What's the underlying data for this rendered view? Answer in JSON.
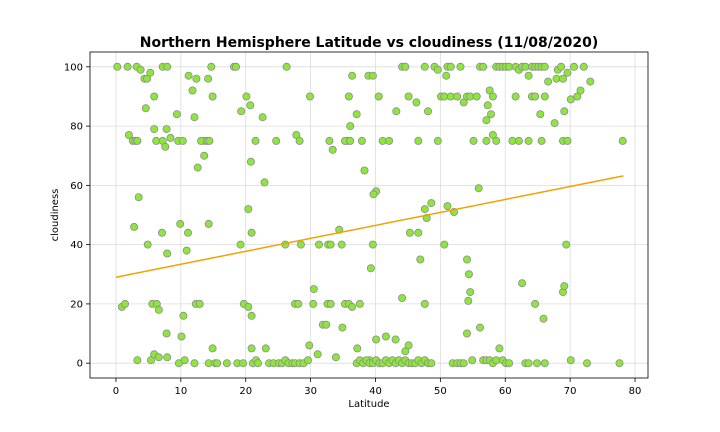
{
  "chart_data": {
    "type": "scatter",
    "title": "Northern Hemisphere Latitude vs cloudiness (11/08/2020)",
    "xlabel": "Latitude",
    "ylabel": "cloudiness",
    "xlim": [
      -4,
      82
    ],
    "ylim": [
      -5,
      105
    ],
    "xticks": [
      0,
      10,
      20,
      30,
      40,
      50,
      60,
      70,
      80
    ],
    "yticks": [
      0,
      20,
      40,
      60,
      80,
      100
    ],
    "grid": true,
    "colors": {
      "marker_fill": "#8ee63c",
      "marker_edge": "#8c8c8c",
      "regression_line": "#f5a000"
    },
    "regression": {
      "x": [
        0,
        78.2
      ],
      "y": [
        29,
        63.2
      ]
    },
    "points": [
      [
        0.2,
        100
      ],
      [
        1.8,
        100
      ],
      [
        3.2,
        100
      ],
      [
        3.8,
        99
      ],
      [
        4.4,
        96
      ],
      [
        4.8,
        96
      ],
      [
        5.3,
        98
      ],
      [
        5.9,
        90
      ],
      [
        7.2,
        100
      ],
      [
        7.9,
        100
      ],
      [
        4.6,
        86
      ],
      [
        8.4,
        76
      ],
      [
        9.4,
        84
      ],
      [
        11.2,
        97
      ],
      [
        12.4,
        96
      ],
      [
        11.8,
        92
      ],
      [
        14.7,
        100
      ],
      [
        13.7,
        75
      ],
      [
        14.2,
        96
      ],
      [
        14.9,
        90
      ],
      [
        2,
        77
      ],
      [
        2.6,
        75
      ],
      [
        3,
        75
      ],
      [
        3.3,
        75
      ],
      [
        5.9,
        79
      ],
      [
        6.2,
        75
      ],
      [
        7.2,
        75
      ],
      [
        7.6,
        73
      ],
      [
        7.8,
        79
      ],
      [
        9.6,
        75
      ],
      [
        10.3,
        75
      ],
      [
        12.1,
        83
      ],
      [
        12.6,
        66
      ],
      [
        13.1,
        75
      ],
      [
        13.6,
        70
      ],
      [
        14.1,
        75
      ],
      [
        14.4,
        75
      ],
      [
        2.8,
        46
      ],
      [
        3.5,
        56
      ],
      [
        4.9,
        40
      ],
      [
        7.1,
        44
      ],
      [
        7.9,
        37
      ],
      [
        9.9,
        47
      ],
      [
        11.1,
        44
      ],
      [
        10.9,
        38
      ],
      [
        14.3,
        47
      ],
      [
        0.9,
        19
      ],
      [
        1.4,
        20
      ],
      [
        5.6,
        20
      ],
      [
        6.3,
        20
      ],
      [
        6.6,
        18
      ],
      [
        10.4,
        16
      ],
      [
        12.3,
        20
      ],
      [
        12.9,
        20
      ],
      [
        3.3,
        1
      ],
      [
        5.4,
        1
      ],
      [
        5.9,
        3
      ],
      [
        6.6,
        2
      ],
      [
        7.8,
        10
      ],
      [
        7.9,
        2
      ],
      [
        9.7,
        0
      ],
      [
        10.1,
        9
      ],
      [
        10.6,
        1
      ],
      [
        12.1,
        0
      ],
      [
        14.3,
        0
      ],
      [
        14.9,
        5
      ],
      [
        15.3,
        0
      ],
      [
        15.6,
        0
      ],
      [
        17.1,
        0
      ],
      [
        18.7,
        0
      ],
      [
        18.2,
        100
      ],
      [
        18.5,
        100
      ],
      [
        19.3,
        85
      ],
      [
        20.1,
        90
      ],
      [
        20.7,
        87
      ],
      [
        21.5,
        75
      ],
      [
        22.6,
        83
      ],
      [
        24.7,
        75
      ],
      [
        26.3,
        100
      ],
      [
        27.8,
        77
      ],
      [
        28.3,
        75
      ],
      [
        29.9,
        90
      ],
      [
        19.2,
        40
      ],
      [
        20.4,
        52
      ],
      [
        20.8,
        68
      ],
      [
        20.9,
        44
      ],
      [
        22.9,
        61
      ],
      [
        19.7,
        20
      ],
      [
        20.4,
        19
      ],
      [
        20.9,
        16
      ],
      [
        19.6,
        0
      ],
      [
        20.9,
        5
      ],
      [
        21.1,
        0
      ],
      [
        21.6,
        1
      ],
      [
        21.9,
        0
      ],
      [
        23.1,
        5
      ],
      [
        23.6,
        0
      ],
      [
        24.3,
        0
      ],
      [
        25.1,
        0
      ],
      [
        25.6,
        0
      ],
      [
        26.1,
        1
      ],
      [
        26.6,
        0
      ],
      [
        27.2,
        0
      ],
      [
        27.6,
        0
      ],
      [
        28.3,
        0
      ],
      [
        28.9,
        0
      ],
      [
        29.6,
        1
      ],
      [
        26.1,
        40
      ],
      [
        27.6,
        20
      ],
      [
        28.1,
        20
      ],
      [
        28.5,
        40
      ],
      [
        29.8,
        6
      ],
      [
        30.5,
        25
      ],
      [
        31.3,
        40
      ],
      [
        30.4,
        20
      ],
      [
        31.1,
        3
      ],
      [
        31.9,
        13
      ],
      [
        32.6,
        20
      ],
      [
        32.4,
        13
      ],
      [
        32.7,
        40
      ],
      [
        33.1,
        40
      ],
      [
        32.9,
        75
      ],
      [
        33.4,
        72
      ],
      [
        33.1,
        20
      ],
      [
        33.9,
        2
      ],
      [
        34.4,
        45
      ],
      [
        34.8,
        40
      ],
      [
        34.9,
        12
      ],
      [
        35.3,
        20
      ],
      [
        35.6,
        75
      ],
      [
        35.9,
        90
      ],
      [
        36.1,
        80
      ],
      [
        36.4,
        97
      ],
      [
        35.9,
        20
      ],
      [
        36.4,
        19
      ],
      [
        35.3,
        75
      ],
      [
        36.1,
        75
      ],
      [
        37.1,
        84
      ],
      [
        37.9,
        75
      ],
      [
        38.3,
        65
      ],
      [
        38.9,
        97
      ],
      [
        39.6,
        97
      ],
      [
        40.1,
        58
      ],
      [
        39.7,
        57
      ],
      [
        40.5,
        90
      ],
      [
        41.1,
        75
      ],
      [
        42.1,
        75
      ],
      [
        43.2,
        85
      ],
      [
        44.1,
        100
      ],
      [
        44.6,
        100
      ],
      [
        45.1,
        90
      ],
      [
        46.3,
        88
      ],
      [
        46.6,
        75
      ],
      [
        47.6,
        100
      ],
      [
        48.1,
        85
      ],
      [
        37.6,
        20
      ],
      [
        37.2,
        5
      ],
      [
        39.1,
        1
      ],
      [
        39.6,
        40
      ],
      [
        39.3,
        32
      ],
      [
        40.1,
        8
      ],
      [
        41.6,
        9
      ],
      [
        43.1,
        8
      ],
      [
        44.1,
        22
      ],
      [
        45.1,
        6
      ],
      [
        44.6,
        4
      ],
      [
        45.3,
        44
      ],
      [
        46.6,
        44
      ],
      [
        46.9,
        35
      ],
      [
        47.6,
        20
      ],
      [
        47.6,
        52
      ],
      [
        47.9,
        49
      ],
      [
        48.6,
        54
      ],
      [
        37.1,
        0
      ],
      [
        37.6,
        1
      ],
      [
        38.1,
        0
      ],
      [
        38.6,
        1
      ],
      [
        39.1,
        0
      ],
      [
        39.6,
        0
      ],
      [
        40.1,
        1
      ],
      [
        40.6,
        0
      ],
      [
        41.1,
        0
      ],
      [
        41.6,
        1
      ],
      [
        42.1,
        0
      ],
      [
        42.6,
        1
      ],
      [
        43.1,
        0
      ],
      [
        43.6,
        1
      ],
      [
        44.1,
        0
      ],
      [
        44.6,
        1
      ],
      [
        45.1,
        0
      ],
      [
        45.6,
        0
      ],
      [
        46.1,
        0
      ],
      [
        46.6,
        1
      ],
      [
        47.1,
        0
      ],
      [
        47.6,
        1
      ],
      [
        48.1,
        0
      ],
      [
        48.6,
        0
      ],
      [
        49.1,
        100
      ],
      [
        49.6,
        99
      ],
      [
        50.1,
        90
      ],
      [
        50.6,
        90
      ],
      [
        51.1,
        100
      ],
      [
        51.6,
        90
      ],
      [
        50.9,
        97
      ],
      [
        52.6,
        90
      ],
      [
        53.1,
        100
      ],
      [
        53.6,
        88
      ],
      [
        54.1,
        90
      ],
      [
        54.6,
        90
      ],
      [
        55.1,
        75
      ],
      [
        55.6,
        90
      ],
      [
        56.1,
        100
      ],
      [
        56.6,
        100
      ],
      [
        49.6,
        75
      ],
      [
        51.1,
        53
      ],
      [
        51.6,
        100
      ],
      [
        50.6,
        40
      ],
      [
        52.1,
        51
      ],
      [
        51.9,
        0
      ],
      [
        52.6,
        0
      ],
      [
        53.1,
        0
      ],
      [
        53.6,
        0
      ],
      [
        54.1,
        10
      ],
      [
        54.1,
        35
      ],
      [
        54.4,
        30
      ],
      [
        54.3,
        21
      ],
      [
        54.6,
        24
      ],
      [
        54.9,
        1
      ],
      [
        55.9,
        59
      ],
      [
        56.1,
        12
      ],
      [
        56.6,
        1
      ],
      [
        57.1,
        1
      ],
      [
        57.6,
        1
      ],
      [
        58.1,
        0
      ],
      [
        58.6,
        1
      ],
      [
        59.1,
        5
      ],
      [
        59.6,
        1
      ],
      [
        60.1,
        0
      ],
      [
        60.6,
        0
      ],
      [
        57.1,
        75
      ],
      [
        57.1,
        82
      ],
      [
        57.3,
        87
      ],
      [
        57.6,
        92
      ],
      [
        57.8,
        84
      ],
      [
        58.1,
        77
      ],
      [
        58.6,
        75
      ],
      [
        58.1,
        90
      ],
      [
        58.6,
        100
      ],
      [
        59.1,
        100
      ],
      [
        59.6,
        100
      ],
      [
        60.1,
        100
      ],
      [
        60.6,
        100
      ],
      [
        61.1,
        75
      ],
      [
        61.6,
        90
      ],
      [
        61.6,
        100
      ],
      [
        62.1,
        75
      ],
      [
        62.1,
        99
      ],
      [
        62.6,
        100
      ],
      [
        63.1,
        100
      ],
      [
        63.6,
        97
      ],
      [
        63.6,
        75
      ],
      [
        64.1,
        90
      ],
      [
        64.1,
        100
      ],
      [
        64.6,
        100
      ],
      [
        65.1,
        100
      ],
      [
        65.6,
        100
      ],
      [
        64.6,
        90
      ],
      [
        65.4,
        84
      ],
      [
        65.6,
        75
      ],
      [
        66.1,
        90
      ],
      [
        66.1,
        100
      ],
      [
        66.6,
        95
      ],
      [
        67.6,
        81
      ],
      [
        67.9,
        96
      ],
      [
        68.1,
        99
      ],
      [
        68.6,
        100
      ],
      [
        68.9,
        96
      ],
      [
        69.1,
        85
      ],
      [
        69.6,
        98
      ],
      [
        68.9,
        75
      ],
      [
        69.6,
        75
      ],
      [
        70.1,
        89
      ],
      [
        70.6,
        100
      ],
      [
        71.1,
        90
      ],
      [
        71.6,
        92
      ],
      [
        72.1,
        100
      ],
      [
        73.1,
        95
      ],
      [
        62.6,
        27
      ],
      [
        63.1,
        0
      ],
      [
        63.6,
        0
      ],
      [
        64.6,
        20
      ],
      [
        64.9,
        0
      ],
      [
        65.9,
        15
      ],
      [
        66.1,
        0
      ],
      [
        68.9,
        24
      ],
      [
        69.1,
        26
      ],
      [
        69.4,
        40
      ],
      [
        70.1,
        1
      ],
      [
        72.6,
        0
      ],
      [
        77.6,
        0
      ],
      [
        78.1,
        75
      ]
    ]
  }
}
